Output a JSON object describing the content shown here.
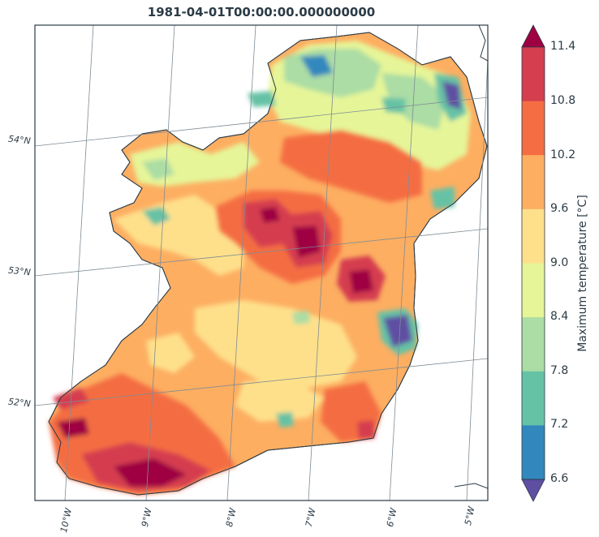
{
  "title": "1981-04-01T00:00:00.000000000",
  "lat_labels": [
    "54°N",
    "53°N",
    "52°N"
  ],
  "lon_labels": [
    "10°W",
    "9°W",
    "8°W",
    "7°W",
    "6°W",
    "5°W"
  ],
  "colorbar": {
    "label": "Maximum temperature [°C]",
    "levels": [
      "11.4",
      "10.8",
      "10.2",
      "9.6",
      "9.0",
      "8.4",
      "7.8",
      "7.2",
      "6.6"
    ],
    "colors": [
      "#d53e4f",
      "#f46d43",
      "#fdae61",
      "#fee08b",
      "#e6f598",
      "#abdda4",
      "#66c2a5",
      "#3288bd"
    ],
    "extend_max_color": "#9e0142",
    "extend_min_color": "#5e4fa2"
  },
  "chart_data": {
    "type": "heatmap",
    "title": "1981-04-01T00:00:00.000000000",
    "variable": "Maximum temperature [°C]",
    "region": "Ireland",
    "vmin": 6.6,
    "vmax": 11.4,
    "step": 0.6,
    "hotspots": [
      {
        "area": "Southwest coast (Kerry/Cork)",
        "value": "> 11.4"
      },
      {
        "area": "Central midlands",
        "value": "> 11.4"
      },
      {
        "area": "Dublin / east coast",
        "value": "< 6.6"
      },
      {
        "area": "Northeast (Antrim)",
        "value": "< 6.6"
      }
    ]
  }
}
